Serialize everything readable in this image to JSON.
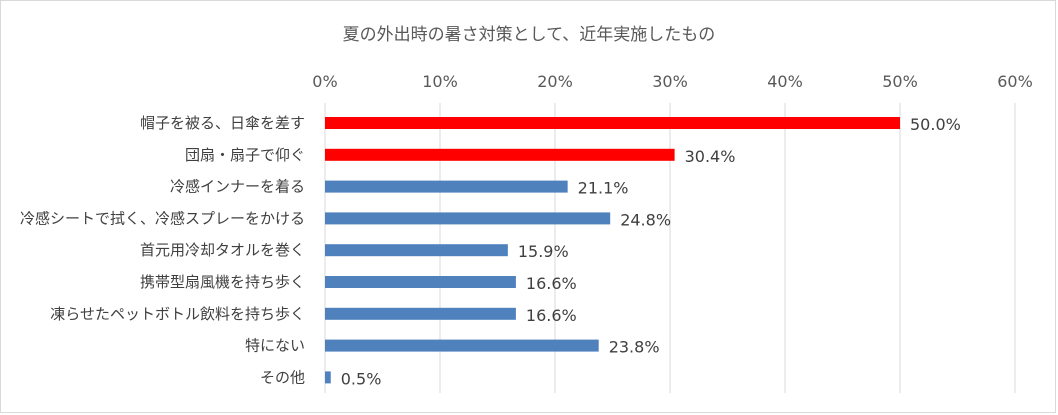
{
  "chart_data": {
    "type": "bar",
    "orientation": "horizontal",
    "title": "夏の外出時の暑さ対策として、近年実施したもの",
    "categories": [
      "帽子を被る、日傘を差す",
      "団扇・扇子で仰ぐ",
      "冷感インナーを着る",
      "冷感シートで拭く、冷感スプレーをかける",
      "首元用冷却タオルを巻く",
      "携帯型扇風機を持ち歩く",
      "凍らせたペットボトル飲料を持ち歩く",
      "特にない",
      "その他"
    ],
    "values": [
      50.0,
      30.4,
      21.1,
      24.8,
      15.9,
      16.6,
      16.6,
      23.8,
      0.5
    ],
    "value_labels": [
      "50.0%",
      "30.4%",
      "21.1%",
      "24.8%",
      "15.9%",
      "16.6%",
      "16.6%",
      "23.8%",
      "0.5%"
    ],
    "bar_colors": [
      "#ff0000",
      "#ff0000",
      "#4f81bd",
      "#4f81bd",
      "#4f81bd",
      "#4f81bd",
      "#4f81bd",
      "#4f81bd",
      "#4f81bd"
    ],
    "xlim": [
      0,
      60
    ],
    "xticks": [
      "0%",
      "10%",
      "20%",
      "30%",
      "40%",
      "50%",
      "60%"
    ],
    "xaxis_position": "top",
    "grid": true,
    "legend": "none"
  }
}
